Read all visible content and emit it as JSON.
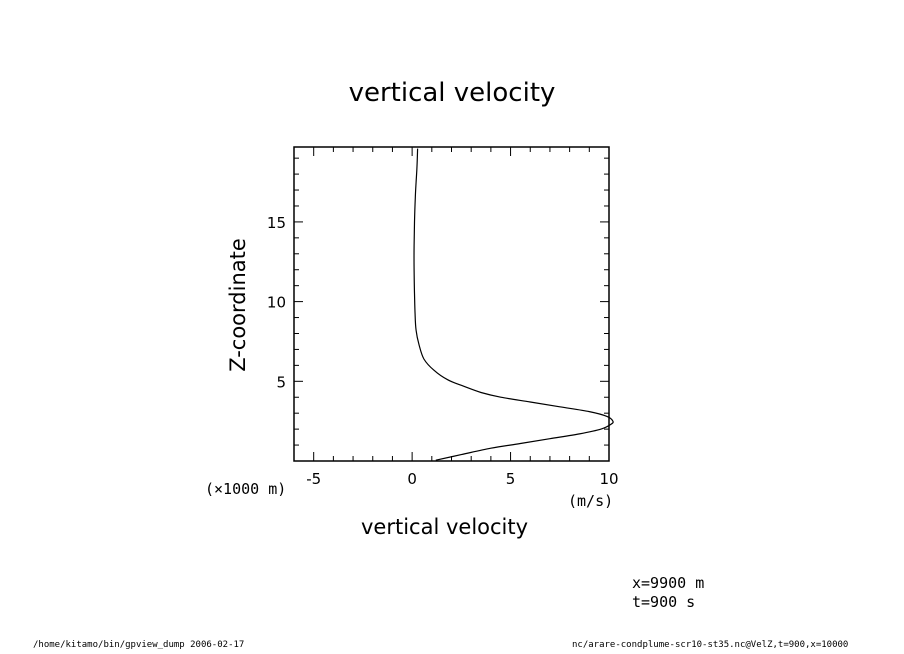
{
  "chart_data": {
    "type": "line",
    "title": "vertical velocity",
    "xlabel": "vertical velocity",
    "xunit": "(m/s)",
    "ylabel": "Z-coordinate",
    "yunit": "(×1000 m)",
    "xlim": [
      -6,
      10
    ],
    "ylim": [
      0,
      19.7
    ],
    "xticks": [
      -5,
      0,
      5,
      10
    ],
    "xtick_labels": [
      "-5",
      "0",
      "5",
      "10"
    ],
    "yticks": [
      5,
      10,
      15
    ],
    "ytick_labels": [
      "5",
      "10",
      "15"
    ],
    "grid": false,
    "series": [
      {
        "x": [
          1.2,
          2.5,
          4.0,
          5.5,
          7.0,
          8.5,
          9.6,
          10.1,
          10.2,
          9.9,
          9.0,
          7.5,
          6.0,
          4.5,
          3.5,
          2.6,
          1.8,
          1.1,
          0.6,
          0.35,
          0.2,
          0.15,
          0.12,
          0.1,
          0.1,
          0.12,
          0.16,
          0.2,
          0.25,
          0.28
        ],
        "y": [
          0.05,
          0.4,
          0.8,
          1.1,
          1.4,
          1.7,
          2.0,
          2.3,
          2.5,
          2.8,
          3.1,
          3.4,
          3.7,
          4.0,
          4.3,
          4.7,
          5.1,
          5.7,
          6.4,
          7.3,
          8.2,
          9.2,
          10.5,
          12.0,
          13.5,
          15.0,
          16.5,
          17.5,
          18.5,
          19.6
        ]
      }
    ]
  },
  "info": {
    "line1": "x=9900  m",
    "line2": "t=900  s"
  },
  "footer": {
    "left": "/home/kitamo/bin/gpview_dump   2006-02-17",
    "right": "nc/arare-condplume-scr10-st35.nc@VelZ,t=900,x=10000"
  }
}
